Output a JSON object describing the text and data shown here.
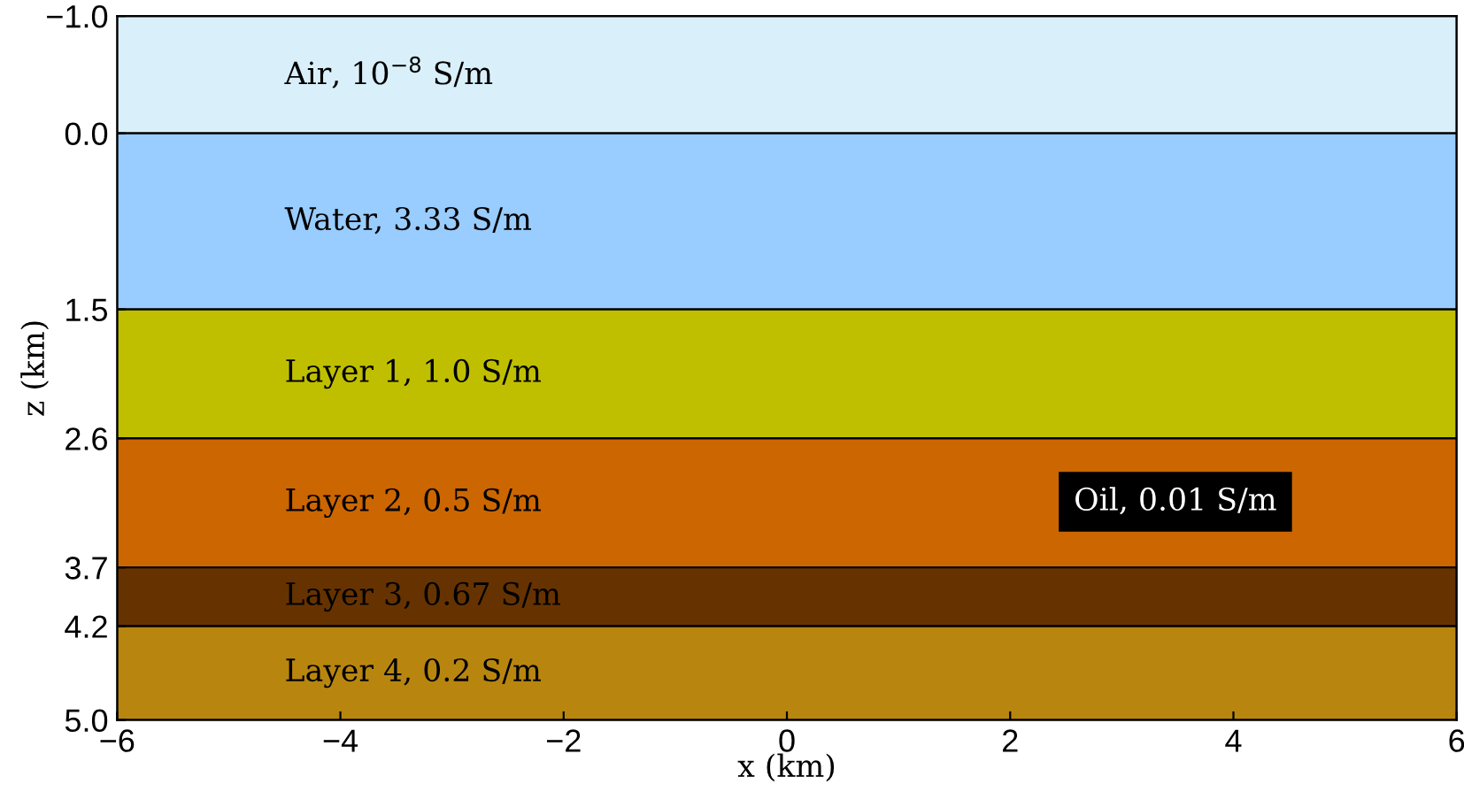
{
  "chart_data": {
    "type": "line",
    "xlabel": "x (km)",
    "ylabel": "z (km)",
    "xlim": [
      -6,
      6
    ],
    "ylim": [
      5.0,
      -1.0
    ],
    "xticks": [
      {
        "value": -6,
        "label": "−6"
      },
      {
        "value": -4,
        "label": "−4"
      },
      {
        "value": -2,
        "label": "−2"
      },
      {
        "value": 0,
        "label": "0"
      },
      {
        "value": 2,
        "label": "2"
      },
      {
        "value": 4,
        "label": "4"
      },
      {
        "value": 6,
        "label": "6"
      }
    ],
    "yticks": [
      {
        "value": -1.0,
        "label": "−1.0"
      },
      {
        "value": 0.0,
        "label": "0.0"
      },
      {
        "value": 1.5,
        "label": "1.5"
      },
      {
        "value": 2.6,
        "label": "2.6"
      },
      {
        "value": 3.7,
        "label": "3.7"
      },
      {
        "value": 4.2,
        "label": "4.2"
      },
      {
        "value": 5.0,
        "label": "5.0"
      }
    ],
    "bands": [
      {
        "axis": "y",
        "from": -1.0,
        "to": 0.0,
        "label": "Air, 10$^{−8}$ S/m",
        "color": "#d9f0fa"
      },
      {
        "axis": "y",
        "from": 0.0,
        "to": 1.5,
        "label": "Water, 3.33 S/m",
        "color": "#99ccff"
      },
      {
        "axis": "y",
        "from": 1.5,
        "to": 2.6,
        "label": "Layer 1, 1.0 S/m",
        "color": "#bfbf00"
      },
      {
        "axis": "y",
        "from": 2.6,
        "to": 3.7,
        "label": "Layer 2, 0.5 S/m",
        "color": "#cc6600"
      },
      {
        "axis": "y",
        "from": 3.7,
        "to": 4.2,
        "label": "Layer 3, 0.67 S/m",
        "color": "#663300"
      },
      {
        "axis": "y",
        "from": 4.2,
        "to": 5.0,
        "label": "Layer 4, 0.2 S/m",
        "color": "#b8860f"
      }
    ],
    "annotations": [
      "Oil, 0.01 S/m"
    ]
  }
}
